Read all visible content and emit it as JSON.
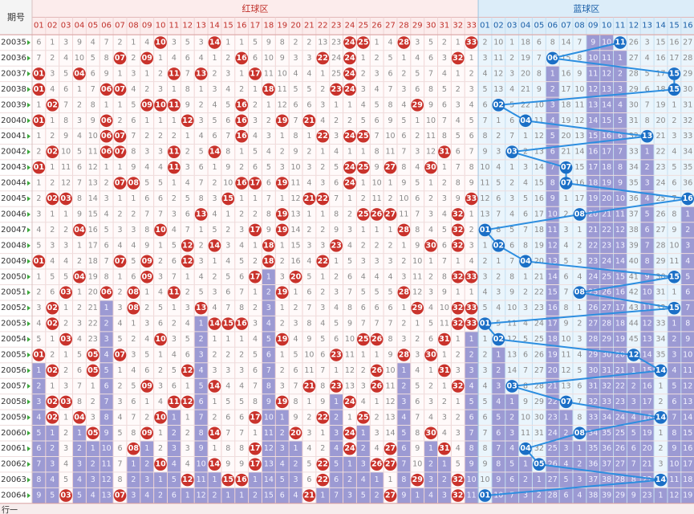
{
  "header": {
    "issue_label": "期号",
    "red_zone": "红球区",
    "blue_zone": "蓝球区",
    "red_numbers": [
      "01",
      "02",
      "03",
      "04",
      "05",
      "06",
      "07",
      "08",
      "09",
      "10",
      "11",
      "12",
      "13",
      "14",
      "15",
      "16",
      "17",
      "18",
      "19",
      "20",
      "21",
      "22",
      "23",
      "24",
      "25",
      "26",
      "27",
      "28",
      "29",
      "30",
      "31",
      "32",
      "33"
    ],
    "blue_numbers": [
      "01",
      "02",
      "03",
      "04",
      "05",
      "06",
      "07",
      "08",
      "09",
      "10",
      "11",
      "12",
      "13",
      "14",
      "15",
      "16"
    ]
  },
  "issues": [
    "20035",
    "20036",
    "20037",
    "20038",
    "20039",
    "20040",
    "20041",
    "20042",
    "20043",
    "20044",
    "20045",
    "20046",
    "20047",
    "20048",
    "20049",
    "20050",
    "20051",
    "20052",
    "20053",
    "20054",
    "20055",
    "20056",
    "20057",
    "20058",
    "20059",
    "20060",
    "20061",
    "20062",
    "20063",
    "20064"
  ],
  "red_columns": [
    [
      6,
      7,
      null,
      null,
      1,
      null,
      1,
      2,
      null,
      1,
      2,
      3,
      4,
      5,
      null,
      1,
      2,
      3,
      4,
      5,
      null,
      1,
      2,
      3,
      4,
      5,
      6,
      7,
      8,
      9
    ],
    [
      1,
      2,
      3,
      4,
      null,
      1,
      2,
      null,
      1,
      2,
      null,
      1,
      2,
      3,
      4,
      5,
      6,
      null,
      null,
      1,
      2,
      null,
      1,
      null,
      null,
      1,
      2,
      3,
      4,
      5
    ],
    [
      3,
      4,
      5,
      6,
      7,
      8,
      9,
      10,
      11,
      12,
      null,
      1,
      2,
      3,
      4,
      5,
      null,
      1,
      2,
      null,
      1,
      2,
      3,
      null,
      1,
      2,
      3,
      4,
      5,
      null
    ],
    [
      9,
      10,
      null,
      1,
      2,
      3,
      4,
      5,
      6,
      7,
      8,
      9,
      null,
      1,
      2,
      null,
      1,
      2,
      3,
      4,
      5,
      6,
      7,
      8,
      null,
      1,
      2,
      3,
      4,
      5
    ],
    [
      4,
      5,
      6,
      7,
      8,
      9,
      10,
      11,
      12,
      13,
      14,
      15,
      16,
      17,
      18,
      19,
      20,
      21,
      22,
      23,
      null,
      null,
      1,
      2,
      3,
      null,
      1,
      2,
      3,
      4
    ],
    [
      7,
      8,
      9,
      null,
      1,
      null,
      null,
      null,
      1,
      2,
      3,
      4,
      5,
      6,
      7,
      8,
      null,
      1,
      2,
      3,
      4,
      5,
      6,
      7,
      8,
      9,
      10,
      11,
      12,
      13
    ],
    [
      2,
      null,
      1,
      null,
      1,
      2,
      null,
      null,
      1,
      null,
      1,
      2,
      3,
      4,
      null,
      1,
      2,
      3,
      4,
      5,
      null,
      1,
      2,
      3,
      4,
      5,
      6,
      7,
      8,
      null
    ],
    [
      1,
      2,
      3,
      4,
      5,
      6,
      7,
      8,
      9,
      null,
      1,
      2,
      3,
      4,
      5,
      6,
      null,
      null,
      1,
      2,
      3,
      4,
      5,
      6,
      7,
      8,
      null,
      1,
      2,
      3
    ],
    [
      4,
      null,
      1,
      2,
      null,
      1,
      2,
      3,
      4,
      5,
      6,
      7,
      8,
      9,
      null,
      null,
      1,
      2,
      3,
      4,
      5,
      6,
      null,
      1,
      2,
      null,
      1,
      2,
      3,
      4
    ],
    [
      null,
      1,
      2,
      3,
      null,
      1,
      2,
      3,
      4,
      5,
      6,
      7,
      null,
      1,
      2,
      3,
      4,
      5,
      6,
      null,
      1,
      2,
      3,
      4,
      null,
      1,
      2,
      null,
      1,
      2
    ],
    [
      3,
      4,
      null,
      1,
      null,
      1,
      2,
      null,
      null,
      1,
      2,
      3,
      4,
      5,
      6,
      7,
      null,
      1,
      2,
      3,
      4,
      5,
      6,
      null,
      1,
      2,
      3,
      4,
      5,
      6
    ],
    [
      5,
      6,
      7,
      8,
      9,
      null,
      1,
      2,
      3,
      4,
      5,
      6,
      7,
      null,
      null,
      1,
      2,
      3,
      4,
      5,
      6,
      null,
      1,
      null,
      1,
      2,
      3,
      4,
      null,
      1
    ],
    [
      3,
      4,
      null,
      1,
      2,
      3,
      4,
      5,
      6,
      7,
      8,
      null,
      1,
      2,
      3,
      4,
      5,
      null,
      1,
      2,
      3,
      4,
      5,
      6,
      7,
      8,
      9,
      10,
      11,
      12
    ],
    [
      null,
      1,
      2,
      3,
      4,
      5,
      6,
      null,
      1,
      2,
      3,
      4,
      5,
      null,
      1,
      2,
      3,
      4,
      null,
      1,
      2,
      3,
      null,
      1,
      2,
      null,
      1,
      null,
      1,
      2
    ],
    [
      1,
      2,
      3,
      4,
      5,
      6,
      7,
      8,
      9,
      10,
      null,
      1,
      2,
      3,
      4,
      5,
      6,
      7,
      null,
      1,
      2,
      3,
      4,
      5,
      6,
      7,
      8,
      9,
      null,
      1
    ],
    [
      1,
      null,
      1,
      2,
      null,
      null,
      null,
      1,
      2,
      null,
      1,
      2,
      3,
      4,
      5,
      6,
      7,
      8,
      null,
      1,
      2,
      3,
      4,
      5,
      6,
      7,
      8,
      9,
      null,
      1
    ],
    [
      5,
      6,
      null,
      1,
      2,
      3,
      4,
      5,
      6,
      null,
      1,
      2,
      null,
      1,
      2,
      null,
      1,
      2,
      3,
      4,
      5,
      6,
      7,
      8,
      null,
      1,
      null,
      null,
      1,
      2
    ],
    [
      9,
      10,
      11,
      null,
      1,
      2,
      3,
      4,
      5,
      6,
      7,
      8,
      9,
      null,
      null,
      1,
      2,
      3,
      4,
      5,
      6,
      7,
      8,
      9,
      10,
      11,
      12,
      13,
      14,
      15
    ],
    [
      8,
      9,
      10,
      11,
      12,
      null,
      1,
      2,
      3,
      null,
      1,
      null,
      null,
      1,
      2,
      3,
      null,
      1,
      2,
      null,
      1,
      2,
      3,
      null,
      1,
      2,
      3,
      4,
      5,
      6
    ],
    [
      2,
      3,
      4,
      5,
      6,
      7,
      8,
      9,
      10,
      11,
      12,
      13,
      14,
      15,
      16,
      null,
      1,
      2,
      3,
      4,
      5,
      6,
      7,
      8,
      9,
      null,
      1,
      2,
      3,
      4
    ],
    [
      2,
      3,
      4,
      5,
      6,
      null,
      1,
      2,
      3,
      4,
      null,
      1,
      2,
      3,
      4,
      5,
      6,
      7,
      8,
      9,
      10,
      11,
      null,
      1,
      2,
      3,
      4,
      5,
      6,
      null
    ],
    [
      13,
      null,
      1,
      2,
      3,
      4,
      null,
      1,
      2,
      3,
      null,
      1,
      2,
      3,
      null,
      1,
      2,
      3,
      4,
      5,
      6,
      7,
      8,
      9,
      null,
      1,
      2,
      null,
      null,
      1
    ],
    [
      23,
      24,
      25,
      null,
      1,
      2,
      3,
      4,
      5,
      6,
      7,
      8,
      9,
      null,
      1,
      2,
      3,
      4,
      5,
      6,
      null,
      1,
      null,
      1,
      2,
      3,
      4,
      5,
      6,
      7
    ],
    [
      null,
      null,
      null,
      null,
      1,
      2,
      null,
      1,
      null,
      null,
      1,
      2,
      3,
      4,
      5,
      6,
      7,
      8,
      9,
      10,
      11,
      12,
      13,
      null,
      1,
      null,
      null,
      1,
      2,
      3
    ],
    [
      null,
      1,
      2,
      3,
      4,
      5,
      null,
      1,
      null,
      1,
      2,
      null,
      1,
      2,
      3,
      4,
      5,
      6,
      7,
      null,
      1,
      2,
      3,
      4,
      null,
      1,
      2,
      3,
      4,
      5
    ],
    [
      1,
      2,
      3,
      4,
      5,
      6,
      7,
      8,
      9,
      10,
      11,
      null,
      1,
      2,
      3,
      4,
      5,
      6,
      7,
      null,
      1,
      null,
      null,
      1,
      2,
      3,
      4,
      null,
      1,
      2
    ],
    [
      4,
      5,
      6,
      7,
      8,
      9,
      10,
      11,
      null,
      1,
      2,
      null,
      1,
      2,
      3,
      4,
      5,
      6,
      7,
      8,
      9,
      10,
      11,
      12,
      13,
      14,
      null,
      null,
      1,
      null
    ],
    [
      null,
      1,
      2,
      3,
      4,
      5,
      6,
      7,
      8,
      9,
      10,
      11,
      null,
      1,
      2,
      3,
      null,
      1,
      2,
      3,
      null,
      1,
      2,
      3,
      4,
      5,
      6,
      7,
      8,
      9
    ],
    [
      3,
      4,
      5,
      6,
      null,
      1,
      2,
      3,
      4,
      5,
      6,
      7,
      8,
      9,
      10,
      11,
      12,
      null,
      1,
      2,
      3,
      4,
      5,
      6,
      7,
      8,
      9,
      10,
      null,
      1
    ],
    [
      5,
      6,
      7,
      8,
      9,
      10,
      11,
      12,
      null,
      1,
      2,
      3,
      4,
      null,
      1,
      2,
      3,
      4,
      5,
      6,
      null,
      1,
      2,
      3,
      4,
      null,
      1,
      2,
      3,
      4
    ],
    [
      2,
      3,
      4,
      5,
      6,
      7,
      8,
      null,
      1,
      2,
      3,
      4,
      5,
      6,
      7,
      8,
      9,
      10,
      11,
      null,
      1,
      null,
      1,
      2,
      3,
      4,
      null,
      1,
      2,
      3
    ],
    [
      1,
      null,
      1,
      2,
      3,
      4,
      5,
      6,
      7,
      8,
      9,
      null,
      null,
      null,
      1,
      null,
      1,
      null,
      null,
      1,
      2,
      3,
      null,
      1,
      2,
      3,
      4,
      5,
      null,
      null
    ],
    [
      null,
      1,
      2,
      3,
      4,
      5,
      6,
      7,
      8,
      9,
      null,
      1,
      2,
      3,
      4,
      null,
      1,
      null,
      null,
      1,
      2,
      3,
      4,
      5,
      6,
      7,
      8,
      9,
      10,
      11
    ]
  ],
  "blue_columns": [
    [
      2,
      3,
      4,
      5,
      6,
      7,
      8,
      9,
      10,
      11,
      12,
      13,
      null,
      1,
      2,
      3,
      4,
      5,
      null,
      1,
      2,
      3,
      4,
      5,
      6,
      7,
      8,
      9,
      10,
      null
    ],
    [
      10,
      11,
      12,
      13,
      null,
      1,
      2,
      3,
      4,
      5,
      6,
      7,
      8,
      null,
      1,
      2,
      3,
      4,
      5,
      null,
      1,
      2,
      3,
      4,
      5,
      6,
      7,
      8,
      9,
      10
    ],
    [
      1,
      2,
      3,
      4,
      5,
      6,
      7,
      null,
      1,
      2,
      3,
      4,
      5,
      6,
      7,
      8,
      9,
      10,
      11,
      12,
      13,
      14,
      null,
      1,
      2,
      3,
      4,
      5,
      6,
      7
    ],
    [
      18,
      19,
      20,
      21,
      22,
      null,
      1,
      2,
      3,
      4,
      5,
      6,
      7,
      8,
      null,
      1,
      2,
      3,
      4,
      5,
      6,
      7,
      8,
      9,
      10,
      11,
      null,
      1,
      2,
      3
    ],
    [
      6,
      7,
      8,
      9,
      10,
      11,
      12,
      13,
      14,
      15,
      16,
      17,
      18,
      19,
      20,
      21,
      22,
      23,
      24,
      25,
      26,
      27,
      28,
      29,
      30,
      31,
      32,
      null,
      1,
      2
    ],
    [
      8,
      null,
      1,
      2,
      3,
      4,
      5,
      6,
      7,
      8,
      9,
      10,
      11,
      12,
      13,
      14,
      15,
      16,
      17,
      18,
      19,
      20,
      21,
      22,
      23,
      24,
      25,
      26,
      27,
      28
    ],
    [
      14,
      15,
      16,
      17,
      18,
      19,
      20,
      21,
      null,
      null,
      1,
      2,
      3,
      4,
      5,
      6,
      7,
      8,
      9,
      10,
      11,
      12,
      13,
      null,
      1,
      2,
      3,
      4,
      5,
      6
    ],
    [
      7,
      8,
      9,
      10,
      11,
      12,
      13,
      14,
      15,
      16,
      17,
      null,
      1,
      2,
      3,
      4,
      null,
      1,
      2,
      3,
      4,
      5,
      6,
      7,
      8,
      null,
      1,
      2,
      3,
      4
    ],
    [
      9,
      10,
      11,
      12,
      13,
      14,
      15,
      16,
      17,
      18,
      19,
      20,
      21,
      22,
      23,
      24,
      25,
      26,
      27,
      28,
      29,
      30,
      31,
      32,
      33,
      34,
      35,
      36,
      37,
      38
    ],
    [
      10,
      11,
      12,
      13,
      14,
      15,
      16,
      17,
      18,
      19,
      20,
      21,
      22,
      23,
      24,
      25,
      26,
      27,
      28,
      29,
      30,
      31,
      32,
      33,
      34,
      35,
      36,
      37,
      38,
      39
    ],
    [
      null,
      1,
      2,
      3,
      4,
      5,
      6,
      7,
      8,
      9,
      10,
      11,
      12,
      13,
      14,
      15,
      16,
      17,
      18,
      19,
      20,
      21,
      22,
      23,
      24,
      25,
      26,
      27,
      28,
      29
    ],
    [
      26,
      27,
      28,
      29,
      30,
      31,
      32,
      33,
      34,
      35,
      36,
      37,
      38,
      39,
      40,
      41,
      42,
      43,
      44,
      45,
      null,
      1,
      2,
      3,
      4,
      5,
      6,
      7,
      8,
      9
    ],
    [
      3,
      4,
      5,
      6,
      7,
      8,
      null,
      1,
      2,
      3,
      4,
      5,
      6,
      7,
      8,
      9,
      10,
      11,
      12,
      13,
      14,
      15,
      16,
      17,
      18,
      19,
      20,
      21,
      22,
      23
    ],
    [
      15,
      16,
      17,
      18,
      19,
      20,
      21,
      22,
      23,
      24,
      25,
      26,
      27,
      28,
      29,
      30,
      31,
      32,
      33,
      34,
      35,
      null,
      1,
      2,
      null,
      1,
      2,
      3,
      null,
      1
    ],
    [
      16,
      17,
      null,
      null,
      1,
      2,
      3,
      4,
      5,
      6,
      7,
      8,
      9,
      10,
      11,
      null,
      1,
      null,
      1,
      2,
      3,
      4,
      5,
      6,
      7,
      8,
      9,
      10,
      11,
      12
    ],
    [
      27,
      28,
      29,
      30,
      31,
      32,
      33,
      34,
      35,
      36,
      null,
      1,
      2,
      3,
      4,
      5,
      6,
      7,
      8,
      9,
      10,
      11,
      12,
      13,
      14,
      15,
      16,
      17,
      18,
      19
    ]
  ],
  "footer": "行一"
}
